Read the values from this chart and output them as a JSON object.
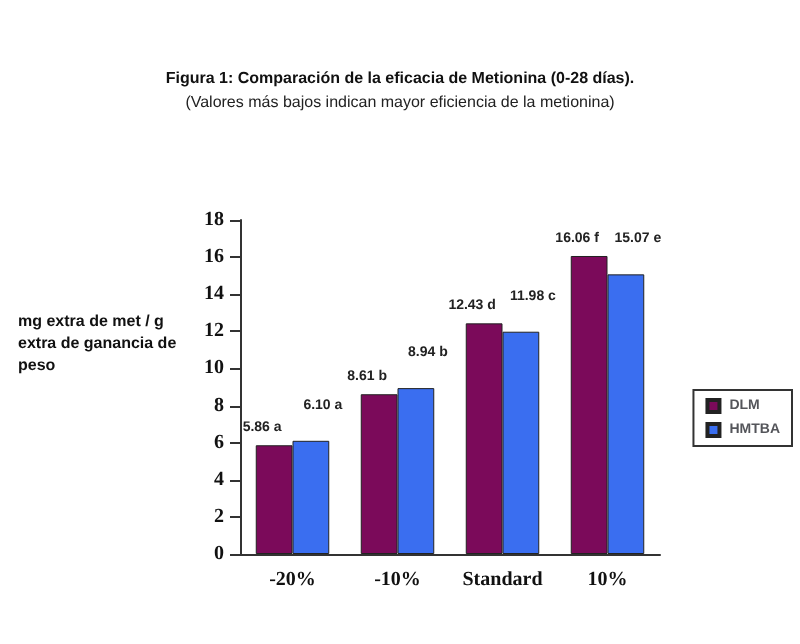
{
  "chart_data": {
    "type": "bar",
    "title": "Figura 1: Comparación de la eficacia de Metionina (0-28 días).",
    "subtitle": "(Valores más bajos indican mayor eficiencia de la metionina)",
    "ylabel": "mg extra de met / g extra de ganancia de peso",
    "categories": [
      "-20%",
      "-10%",
      "Standard",
      "10%"
    ],
    "series": [
      {
        "name": "DLM",
        "color": "#7b0a5a",
        "values": [
          5.86,
          8.61,
          12.43,
          16.06
        ],
        "value_labels": [
          "5.86 a",
          "8.61 b",
          "12.43 d",
          "16.06 f"
        ]
      },
      {
        "name": "HMTBA",
        "color": "#3a6ef0",
        "values": [
          6.1,
          8.94,
          11.98,
          15.07
        ],
        "value_labels": [
          "6.10 a",
          "8.94 b",
          "11.98 c",
          "15.07 e"
        ]
      }
    ],
    "ylim": [
      0,
      18
    ],
    "yticks": [
      0,
      2,
      4,
      6,
      8,
      10,
      12,
      14,
      16,
      18
    ],
    "grid": false,
    "legend": "right"
  }
}
